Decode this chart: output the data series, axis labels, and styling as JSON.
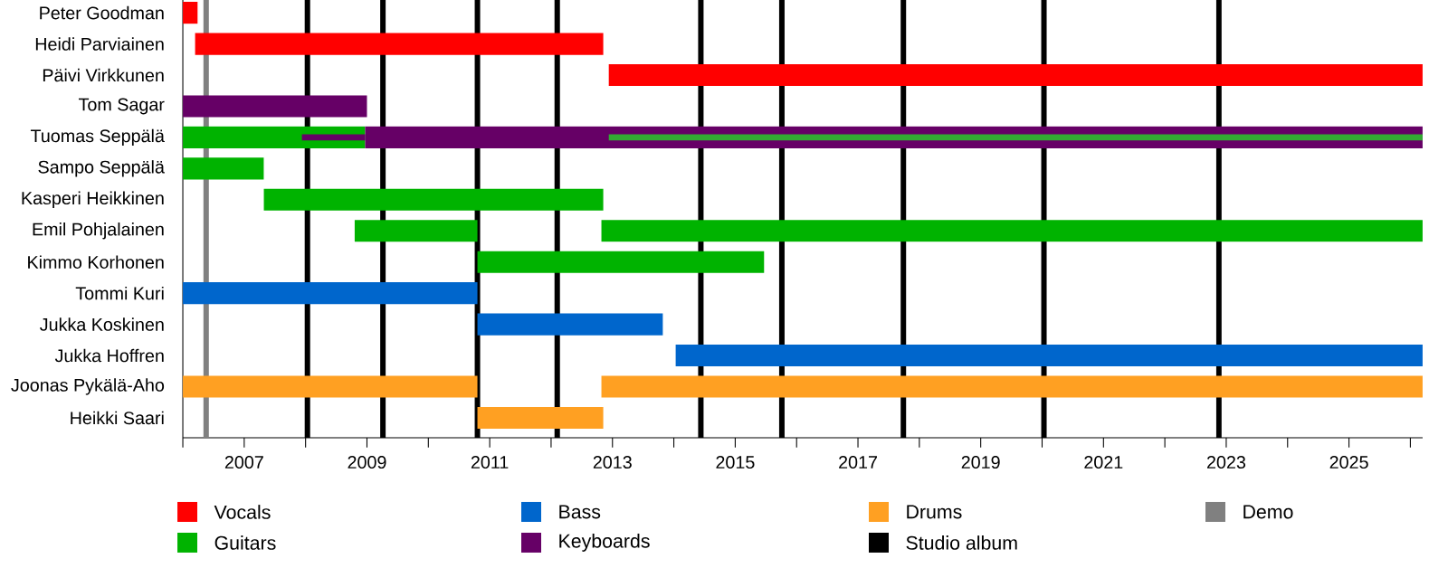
{
  "chart_data": {
    "type": "bar",
    "orientation": "horizontal",
    "legend": "bottom",
    "grid": false,
    "categories": [
      "Peter Goodman",
      "Heidi Parviainen",
      "Päivi Virkkunen",
      "Tom Sagar",
      "Tuomas Seppälä",
      "Sampo Seppälä",
      "Kasperi Heikkinen",
      "Emil Pohjalainen",
      "Kimmo Korhonen",
      "Tommi Kuri",
      "Jukka Koskinen",
      "Jukka Hoffren",
      "Joonas Pykälä-Aho",
      "Heikki Saari"
    ],
    "series": [
      {
        "name": "Vocals",
        "color": "#ff0000",
        "base": [
          2006,
          2006.2,
          2012.94,
          null,
          null,
          null,
          null,
          null,
          null,
          null,
          null,
          null,
          null,
          null
        ],
        "values": [
          0.24,
          6.65,
          13.26,
          null,
          null,
          null,
          null,
          null,
          null,
          null,
          null,
          null,
          null,
          null
        ]
      },
      {
        "name": "Guitars",
        "color": "#00b300",
        "base": [
          null,
          null,
          null,
          null,
          2006,
          2006,
          2007.32,
          2008.8,
          2010.8,
          null,
          null,
          null,
          null,
          null
        ],
        "values": [
          null,
          null,
          null,
          null,
          2.97,
          1.32,
          5.53,
          2.0,
          4.67,
          null,
          null,
          null,
          null,
          null
        ]
      },
      {
        "name": "Bass",
        "color": "#0066cc",
        "base": [
          null,
          null,
          null,
          null,
          null,
          null,
          null,
          null,
          null,
          2006,
          2010.8,
          2014.03,
          null,
          null
        ],
        "values": [
          null,
          null,
          null,
          null,
          null,
          null,
          null,
          null,
          null,
          4.8,
          3.02,
          12.17,
          null,
          null
        ]
      },
      {
        "name": "Keyboards",
        "color": "#660066",
        "base": [
          null,
          null,
          null,
          2006,
          2008.97,
          null,
          null,
          null,
          null,
          null,
          null,
          null,
          null,
          null
        ],
        "values": [
          null,
          null,
          null,
          3.0,
          17.23,
          null,
          null,
          null,
          null,
          null,
          null,
          null,
          null,
          null
        ]
      },
      {
        "name": "Drums",
        "color": "#ffa022",
        "base": [
          null,
          null,
          null,
          null,
          null,
          null,
          null,
          null,
          null,
          null,
          null,
          null,
          2006,
          2010.8
        ],
        "values": [
          null,
          null,
          null,
          null,
          null,
          null,
          null,
          null,
          null,
          null,
          null,
          null,
          4.8,
          2.05
        ]
      },
      {
        "color": "#00b300",
        "base": [
          null,
          null,
          null,
          null,
          null,
          null,
          null,
          2012.82,
          null,
          null,
          null,
          null,
          null,
          null
        ],
        "values": [
          null,
          null,
          null,
          null,
          null,
          null,
          null,
          13.38,
          null,
          null,
          null,
          null,
          null,
          null
        ]
      },
      {
        "color": "#ffa022",
        "base": [
          null,
          null,
          null,
          null,
          null,
          null,
          null,
          null,
          null,
          null,
          null,
          null,
          2012.82,
          null
        ],
        "values": [
          null,
          null,
          null,
          null,
          null,
          null,
          null,
          null,
          null,
          null,
          null,
          null,
          13.38,
          null
        ]
      },
      {
        "color": "#660066",
        "base": [
          null,
          null,
          null,
          null,
          2007.94,
          null,
          null,
          null,
          null,
          null,
          null,
          null,
          null,
          null
        ],
        "values": [
          null,
          null,
          null,
          null,
          1.03,
          null,
          null,
          null,
          null,
          null,
          null,
          null,
          null,
          null
        ]
      },
      {
        "color": "#33aa33",
        "base": [
          null,
          null,
          null,
          null,
          2012.94,
          null,
          null,
          null,
          null,
          null,
          null,
          null,
          null,
          null
        ],
        "values": [
          null,
          null,
          null,
          null,
          13.26,
          null,
          null,
          null,
          null,
          null,
          null,
          null,
          null,
          null
        ]
      }
    ],
    "xlim": [
      2006,
      2026.2
    ],
    "xticks": [
      {
        "value": 2006,
        "label": null
      },
      2007,
      {
        "value": 2008,
        "label": null
      },
      2009,
      {
        "value": 2010,
        "label": null
      },
      2011,
      {
        "value": 2012,
        "label": null
      },
      2013,
      {
        "value": 2014,
        "label": null
      },
      2015,
      {
        "value": 2016,
        "label": null
      },
      2017,
      {
        "value": 2018,
        "label": null
      },
      2019,
      {
        "value": 2020,
        "label": null
      },
      2021,
      {
        "value": 2022,
        "label": null
      },
      2023,
      {
        "value": 2024,
        "label": null
      },
      2025,
      {
        "value": 2026,
        "label": null
      }
    ],
    "ref_lines": [
      {
        "axis": "x",
        "value": 2008.03,
        "color": "#000000",
        "label": "Studio album"
      },
      {
        "axis": "x",
        "value": 2009.26,
        "color": "#000000"
      },
      {
        "axis": "x",
        "value": 2010.8,
        "color": "#000000"
      },
      {
        "axis": "x",
        "value": 2012.1,
        "color": "#000000"
      },
      {
        "axis": "x",
        "value": 2014.44,
        "color": "#000000"
      },
      {
        "axis": "x",
        "value": 2015.76,
        "color": "#000000"
      },
      {
        "axis": "x",
        "value": 2017.74,
        "color": "#000000"
      },
      {
        "axis": "x",
        "value": 2020.03,
        "color": "#000000"
      },
      {
        "axis": "x",
        "value": 2022.88,
        "color": "#000000"
      },
      {
        "axis": "x",
        "value": 2006.38,
        "color": "#808080",
        "label": "Demo"
      }
    ]
  }
}
